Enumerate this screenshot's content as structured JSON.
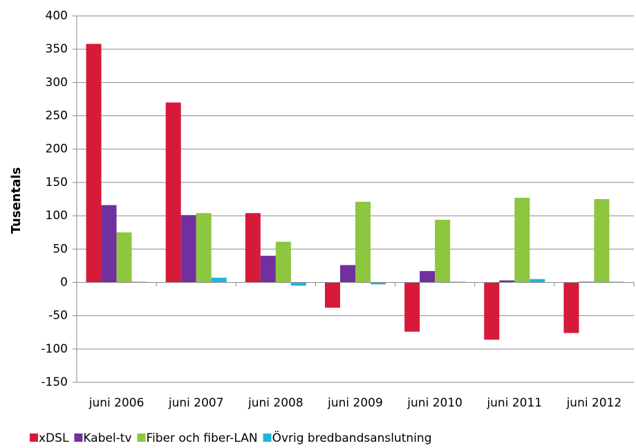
{
  "chart_data": {
    "type": "bar",
    "y_label": "Tusentals",
    "categories": [
      "juni 2006",
      "juni 2007",
      "juni 2008",
      "juni 2009",
      "juni 2010",
      "juni 2011",
      "juni 2012"
    ],
    "series": [
      {
        "name": "xDSL",
        "color": "#d7193a",
        "values": [
          358,
          270,
          104,
          -38,
          -74,
          -86,
          -76
        ]
      },
      {
        "name": "Kabel-tv",
        "color": "#7030a0",
        "values": [
          116,
          101,
          40,
          26,
          17,
          3,
          1
        ]
      },
      {
        "name": "Fiber och fiber-LAN",
        "color": "#8dc63f",
        "values": [
          75,
          104,
          61,
          121,
          94,
          127,
          125
        ]
      },
      {
        "name": "Övrig bredbandsanslutning",
        "color": "#1fb4e0",
        "values": [
          1,
          7,
          -5,
          -3,
          1,
          5,
          1
        ]
      }
    ],
    "ylim": [
      -150,
      400
    ],
    "yticks": [
      -150,
      -100,
      -50,
      0,
      50,
      100,
      150,
      200,
      250,
      300,
      350,
      400
    ],
    "grid": true,
    "legend": "bottom"
  }
}
